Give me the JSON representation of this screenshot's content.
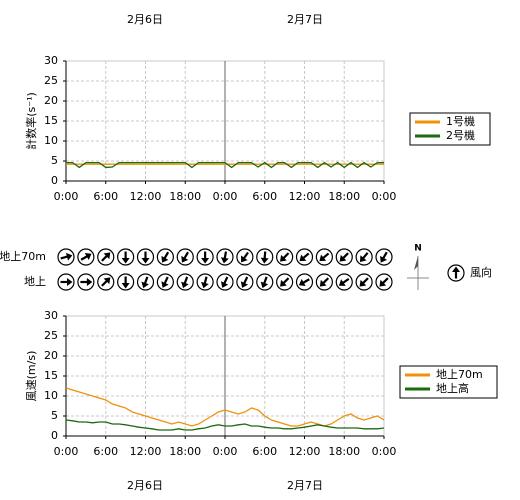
{
  "dates": [
    "2月6日",
    "2月7日"
  ],
  "chart_data": [
    {
      "type": "line",
      "ylabel": "計数率(s⁻¹)",
      "x": [
        0,
        1,
        2,
        3,
        4,
        5,
        6,
        7,
        8,
        9,
        10,
        11,
        12,
        13,
        14,
        15,
        16,
        17,
        18,
        19,
        20,
        21,
        22,
        23,
        24,
        25,
        26,
        27,
        28,
        29,
        30,
        31,
        32,
        33,
        34,
        35,
        36,
        37,
        38,
        39,
        40,
        41,
        42,
        43,
        44,
        45,
        46,
        47,
        48
      ],
      "xlim": [
        0,
        48
      ],
      "xticks": [
        {
          "value": 0,
          "label": "0:00"
        },
        {
          "value": 6,
          "label": "6:00"
        },
        {
          "value": 12,
          "label": "12:00"
        },
        {
          "value": 18,
          "label": "18:00"
        },
        {
          "value": 24,
          "label": "0:00"
        },
        {
          "value": 30,
          "label": "6:00"
        },
        {
          "value": 36,
          "label": "12:00"
        },
        {
          "value": 42,
          "label": "18:00"
        },
        {
          "value": 48,
          "label": "0:00"
        }
      ],
      "ylim": [
        0,
        30
      ],
      "yticks": [
        0,
        5,
        10,
        15,
        20,
        25,
        30
      ],
      "grid": true,
      "legend": "right",
      "series": [
        {
          "name": "1号機",
          "color": "#f0900a",
          "values": [
            4.2,
            4.2,
            4.2,
            4.2,
            4.2,
            4.2,
            4.2,
            4.2,
            4.2,
            4.2,
            4.2,
            4.2,
            4.2,
            4.2,
            4.2,
            4.2,
            4.2,
            4.2,
            4.2,
            4.2,
            4.2,
            4.2,
            4.2,
            4.2,
            4.2,
            4.2,
            4.2,
            4.2,
            4.2,
            4.2,
            4.2,
            4.2,
            4.2,
            4.2,
            4.2,
            4.2,
            4.2,
            4.2,
            4.2,
            4.2,
            4.2,
            4.2,
            4.2,
            4.2,
            4.2,
            4.2,
            4.2,
            4.2,
            4.2
          ]
        },
        {
          "name": "2号機",
          "color": "#1a6a10",
          "values": [
            4.6,
            4.6,
            3.4,
            4.6,
            4.6,
            4.6,
            3.4,
            3.5,
            4.6,
            4.6,
            4.6,
            4.6,
            4.6,
            4.6,
            4.6,
            4.6,
            4.6,
            4.6,
            4.6,
            3.4,
            4.6,
            4.6,
            4.6,
            4.6,
            4.6,
            3.4,
            4.6,
            4.6,
            4.6,
            3.5,
            4.6,
            3.4,
            4.6,
            4.6,
            3.4,
            4.6,
            4.6,
            4.6,
            3.4,
            4.6,
            3.5,
            4.6,
            3.4,
            4.6,
            3.4,
            4.6,
            3.5,
            4.6,
            4.6
          ]
        }
      ]
    },
    {
      "type": "line",
      "ylabel": "風速(m/s)",
      "x": [
        0,
        1,
        2,
        3,
        4,
        5,
        6,
        7,
        8,
        9,
        10,
        11,
        12,
        13,
        14,
        15,
        16,
        17,
        18,
        19,
        20,
        21,
        22,
        23,
        24,
        25,
        26,
        27,
        28,
        29,
        30,
        31,
        32,
        33,
        34,
        35,
        36,
        37,
        38,
        39,
        40,
        41,
        42,
        43,
        44,
        45,
        46,
        47,
        48
      ],
      "xlim": [
        0,
        48
      ],
      "xticks": [
        {
          "value": 0,
          "label": "0:00"
        },
        {
          "value": 6,
          "label": "6:00"
        },
        {
          "value": 12,
          "label": "12:00"
        },
        {
          "value": 18,
          "label": "18:00"
        },
        {
          "value": 24,
          "label": "0:00"
        },
        {
          "value": 30,
          "label": "6:00"
        },
        {
          "value": 36,
          "label": "12:00"
        },
        {
          "value": 42,
          "label": "18:00"
        },
        {
          "value": 48,
          "label": "0:00"
        }
      ],
      "ylim": [
        0,
        30
      ],
      "yticks": [
        0,
        5,
        10,
        15,
        20,
        25,
        30
      ],
      "grid": true,
      "legend": "right",
      "series": [
        {
          "name": "地上70m",
          "color": "#f0900a",
          "values": [
            12,
            11.5,
            11,
            10.5,
            10,
            9.5,
            9,
            8,
            7.5,
            7,
            6,
            5.5,
            5,
            4.5,
            4,
            3.5,
            3,
            3.5,
            3,
            2.5,
            3,
            4,
            5,
            6,
            6.5,
            6,
            5.5,
            6,
            7,
            6.5,
            5,
            4,
            3.5,
            3,
            2.5,
            2.5,
            3,
            3.5,
            3,
            2.5,
            3,
            4,
            5,
            5.5,
            4.5,
            4,
            4.5,
            5,
            4
          ]
        },
        {
          "name": "地上高",
          "color": "#1a6a10",
          "values": [
            4,
            3.8,
            3.5,
            3.5,
            3.3,
            3.5,
            3.5,
            3,
            3,
            2.8,
            2.5,
            2.2,
            2,
            1.8,
            1.5,
            1.5,
            1.5,
            1.8,
            1.5,
            1.5,
            1.8,
            2,
            2.5,
            2.8,
            2.5,
            2.5,
            2.8,
            3,
            2.5,
            2.5,
            2.2,
            2,
            2,
            1.8,
            1.8,
            2,
            2.2,
            2.5,
            2.8,
            2.5,
            2.2,
            2,
            2,
            2,
            2,
            1.8,
            1.8,
            1.8,
            2
          ]
        }
      ]
    }
  ],
  "wind_direction": {
    "rows": [
      {
        "label": "地上70m",
        "values": [
          75,
          60,
          45,
          180,
          180,
          210,
          210,
          180,
          190,
          215,
          185,
          225,
          230,
          230,
          225,
          220,
          210
        ]
      },
      {
        "label": "地上",
        "values": [
          90,
          90,
          45,
          180,
          200,
          205,
          200,
          195,
          205,
          205,
          200,
          225,
          240,
          225,
          235,
          225,
          225
        ]
      }
    ],
    "north": "N",
    "legend_label": "風向",
    "legend_value": 0
  }
}
